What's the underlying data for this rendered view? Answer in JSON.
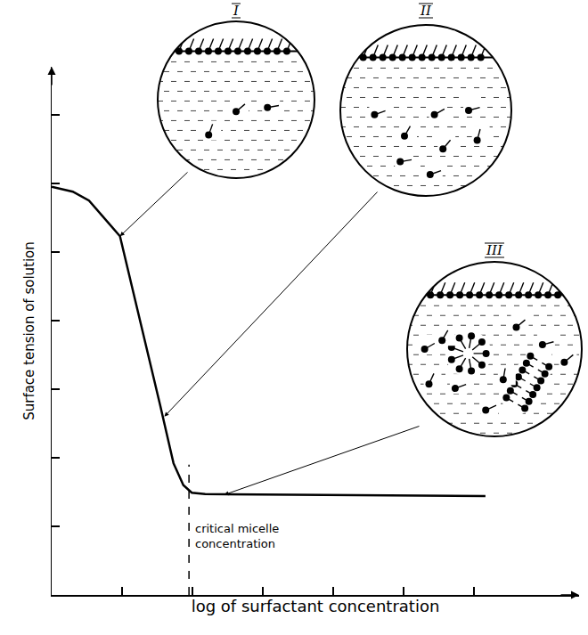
{
  "chart_data": {
    "type": "line",
    "x": [
      0,
      0.3,
      0.53,
      0.97,
      1.54,
      1.73,
      1.87,
      1.99,
      2.18,
      6.16
    ],
    "values": [
      5.95,
      5.88,
      5.75,
      5.23,
      2.77,
      1.92,
      1.6,
      1.49,
      1.47,
      1.44
    ],
    "color": "#000000",
    "line_style": "solid",
    "xlabel": "log of surfactant concentration",
    "ylabel": "Surface tension of solution",
    "xlim": [
      0,
      7.49
    ],
    "ylim": [
      0,
      7.7
    ],
    "xticks": [
      1,
      2,
      3,
      4,
      5,
      6
    ],
    "yticks": [
      1,
      2,
      3,
      4,
      5,
      6,
      7
    ],
    "tick_labels": false,
    "grid": false,
    "cmc": {
      "x": 1.95,
      "y": 1.9,
      "label": "critical micelle concentration"
    },
    "annotations": [
      {
        "text": "I",
        "x": 0.97,
        "y": 5.23
      },
      {
        "text": "II",
        "x": 1.6,
        "y": 2.6
      },
      {
        "text": "III",
        "x": 2.45,
        "y": 1.46
      }
    ]
  }
}
